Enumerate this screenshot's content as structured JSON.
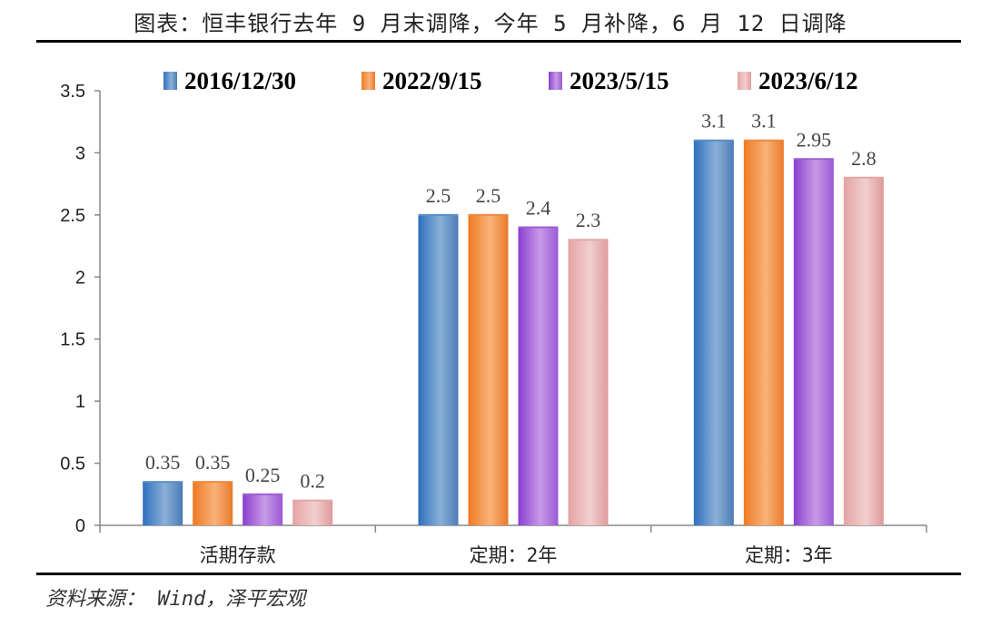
{
  "title": "图表：恒丰银行去年 9 月末调降，今年 5 月补降，6 月 12 日调降",
  "source": "资料来源： Wind，泽平宏观",
  "chart_data": {
    "type": "bar",
    "categories": [
      "活期存款",
      "定期：2年",
      "定期：3年"
    ],
    "series": [
      {
        "name": "2016/12/30",
        "values": [
          0.35,
          2.5,
          3.1
        ],
        "color": "#5b8fc7"
      },
      {
        "name": "2022/9/15",
        "values": [
          0.35,
          2.5,
          3.1
        ],
        "color": "#f08a3c"
      },
      {
        "name": "2023/5/15",
        "values": [
          0.25,
          2.4,
          2.95
        ],
        "color": "#9b5fd0"
      },
      {
        "name": "2023/6/12",
        "values": [
          0.2,
          2.3,
          2.8
        ],
        "color": "#e3a7a7"
      }
    ],
    "data_labels": [
      [
        "0.35",
        "2.5",
        "3.1"
      ],
      [
        "0.35",
        "2.5",
        "3.1"
      ],
      [
        "0.25",
        "2.4",
        "2.95"
      ],
      [
        "0.2",
        "2.3",
        "2.8"
      ]
    ],
    "yticks": [
      "0",
      "0.5",
      "1",
      "1.5",
      "2",
      "2.5",
      "3",
      "3.5"
    ],
    "ylim": [
      0,
      3.5
    ],
    "legend_position": "top",
    "grid": false
  }
}
